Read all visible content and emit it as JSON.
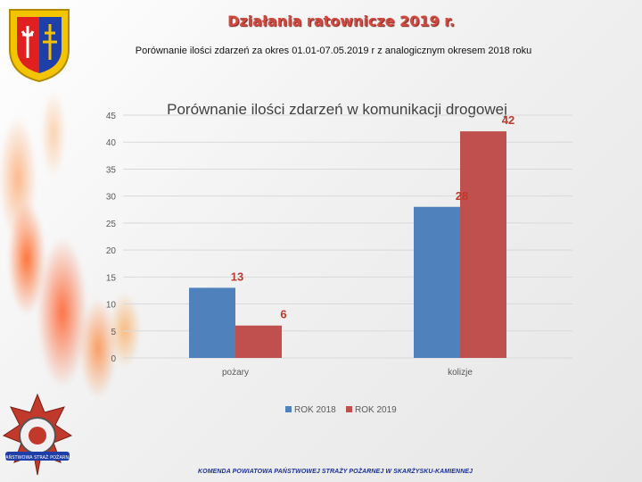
{
  "header": {
    "title": "Działania ratownicze 2019 r.",
    "subtitle": "Porównanie ilości zdarzeń za okres 01.01-07.05.2019 r z analogicznym okresem 2018 roku"
  },
  "footer": {
    "text": "KOMENDA POWIATOWA PAŃSTWOWEJ STRAŻY POŻARNEJ W SKARŻYSKU-KAMIENNEJ"
  },
  "badge": {
    "text": "PAŃSTWOWA STRAŻ POŻARNA"
  },
  "colors": {
    "series_2018": "#4f81bd",
    "series_2019": "#c0504d",
    "title_red": "#d14a40",
    "footer_blue": "#1b2f9e"
  },
  "chart_data": {
    "type": "bar",
    "title": "Porównanie ilości zdarzeń w komunikacji drogowej",
    "categories": [
      "pożary",
      "kolizje"
    ],
    "series": [
      {
        "name": "ROK 2018",
        "values": [
          13,
          28
        ]
      },
      {
        "name": "ROK 2019",
        "values": [
          6,
          42
        ]
      }
    ],
    "ylim": [
      0,
      45
    ],
    "yticks": [
      0,
      5,
      10,
      15,
      20,
      25,
      30,
      35,
      40,
      45
    ],
    "grid": true,
    "legend": "bottom"
  }
}
